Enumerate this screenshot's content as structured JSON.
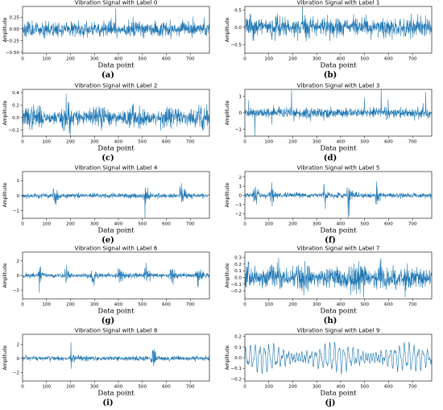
{
  "figure": {
    "signal_color": "#1f77b4"
  },
  "chart_data": [
    {
      "id": "a",
      "type": "line",
      "title": "Vibration Signal with Label 0",
      "xlabel": "Data point",
      "ylabel": "Amplitude",
      "sublabel": "(a)",
      "xlim": [
        0,
        780
      ],
      "ylim": [
        -0.52,
        0.48
      ],
      "xticks": [
        0,
        100,
        200,
        300,
        400,
        500,
        600,
        700
      ],
      "yticks": [
        0.25,
        0.0,
        -0.25,
        -0.5
      ],
      "ytick_labels": [
        "0.25",
        "0.00",
        "−0.25",
        "−0.50"
      ],
      "amplitude": 0.3,
      "pattern": "dense",
      "seed": 11
    },
    {
      "id": "b",
      "type": "line",
      "title": "Vibration Signal with Label 1",
      "xlabel": "Data point",
      "ylabel": "Amplitude",
      "sublabel": "(b)",
      "xlim": [
        0,
        780
      ],
      "ylim": [
        -0.75,
        0.6
      ],
      "xticks": [
        0,
        100,
        200,
        300,
        400,
        500,
        600,
        700
      ],
      "yticks": [
        0.5,
        0.0,
        -0.5
      ],
      "ytick_labels": [
        "0.5",
        "0.0",
        "−0.5"
      ],
      "amplitude": 0.5,
      "pattern": "dense",
      "seed": 23
    },
    {
      "id": "c",
      "type": "line",
      "title": "Vibration Signal with Label 2",
      "xlabel": "Data point",
      "ylabel": "Amplitude",
      "sublabel": "(c)",
      "xlim": [
        0,
        780
      ],
      "ylim": [
        -0.3,
        0.45
      ],
      "xticks": [
        0,
        100,
        200,
        300,
        400,
        500,
        600,
        700
      ],
      "yticks": [
        0.4,
        0.2,
        0.0,
        -0.2
      ],
      "ytick_labels": [
        "0.4",
        "0.2",
        "0.0",
        "−0.2"
      ],
      "amplitude": 0.35,
      "pattern": "bursty",
      "seed": 37
    },
    {
      "id": "d",
      "type": "line",
      "title": "Vibration Signal with Label 3",
      "xlabel": "Data point",
      "ylabel": "Amplitude",
      "sublabel": "(d)",
      "xlim": [
        0,
        780
      ],
      "ylim": [
        -1.4,
        1.4
      ],
      "xticks": [
        0,
        100,
        200,
        300,
        400,
        500,
        600,
        700
      ],
      "yticks": [
        1,
        0,
        -1
      ],
      "ytick_labels": [
        "1",
        "0",
        "−1"
      ],
      "amplitude": 1.2,
      "pattern": "spiky",
      "seed": 41
    },
    {
      "id": "e",
      "type": "line",
      "title": "Vibration Signal with Label 4",
      "xlabel": "Data point",
      "ylabel": "Amplitude",
      "sublabel": "(e)",
      "xlim": [
        0,
        780
      ],
      "ylim": [
        -1.5,
        1.6
      ],
      "xticks": [
        0,
        100,
        200,
        300,
        400,
        500,
        600,
        700
      ],
      "yticks": [
        1,
        0,
        -1
      ],
      "ytick_labels": [
        "1",
        "0",
        "−1"
      ],
      "amplitude": 1.4,
      "pattern": "impulse",
      "bursts": [
        130,
        510,
        660
      ],
      "seed": 53
    },
    {
      "id": "f",
      "type": "line",
      "title": "Vibration Signal with Label 5",
      "xlabel": "Data point",
      "ylabel": "Amplitude",
      "sublabel": "(f)",
      "xlim": [
        0,
        780
      ],
      "ylim": [
        -2.5,
        2.6
      ],
      "xticks": [
        0,
        100,
        200,
        300,
        400,
        500,
        600,
        700
      ],
      "yticks": [
        2,
        1,
        0,
        -1,
        -2
      ],
      "ytick_labels": [
        "2",
        "1",
        "0",
        "−1",
        "−2"
      ],
      "amplitude": 2.2,
      "pattern": "impulse",
      "bursts": [
        40,
        110,
        330,
        430,
        550
      ],
      "seed": 67
    },
    {
      "id": "g",
      "type": "line",
      "title": "Vibration Signal with Label 6",
      "xlabel": "Data point",
      "ylabel": "Amplitude",
      "sublabel": "(g)",
      "xlim": [
        0,
        780
      ],
      "ylim": [
        -3.2,
        3.2
      ],
      "xticks": [
        0,
        100,
        200,
        300,
        400,
        500,
        600,
        700
      ],
      "yticks": [
        2,
        0,
        -2
      ],
      "ytick_labels": [
        "2",
        "0",
        "−2"
      ],
      "amplitude": 2.6,
      "pattern": "impulse",
      "bursts": [
        70,
        180,
        290,
        400,
        510,
        620,
        730
      ],
      "seed": 71
    },
    {
      "id": "h",
      "type": "line",
      "title": "Vibration Signal with Label 7",
      "xlabel": "Data point",
      "ylabel": "Amplitude",
      "sublabel": "(h)",
      "xlim": [
        0,
        780
      ],
      "ylim": [
        -0.32,
        0.38
      ],
      "xticks": [
        0,
        100,
        200,
        300,
        400,
        500,
        600,
        700
      ],
      "yticks": [
        0.3,
        0.2,
        0.1,
        0.0,
        -0.1,
        -0.2
      ],
      "ytick_labels": [
        "0.3",
        "0.2",
        "0.1",
        "0.0",
        "−0.1",
        "−0.2"
      ],
      "amplitude": 0.3,
      "pattern": "dense",
      "seed": 83
    },
    {
      "id": "i",
      "type": "line",
      "title": "Vibration Signal with Label 8",
      "xlabel": "Data point",
      "ylabel": "Amplitude",
      "sublabel": "(i)",
      "xlim": [
        0,
        780
      ],
      "ylim": [
        -3.2,
        3.4
      ],
      "xticks": [
        0,
        100,
        200,
        300,
        400,
        500,
        600,
        700
      ],
      "yticks": [
        2,
        0,
        -2
      ],
      "ytick_labels": [
        "2",
        "0",
        "−2"
      ],
      "amplitude": 2.8,
      "pattern": "impulse",
      "bursts": [
        200,
        540
      ],
      "seed": 97
    },
    {
      "id": "j",
      "type": "line",
      "title": "Vibration Signal with Label 9",
      "xlabel": "Data point",
      "ylabel": "Amplitude",
      "sublabel": "(j)",
      "xlim": [
        0,
        780
      ],
      "ylim": [
        -0.22,
        0.22
      ],
      "xticks": [
        0,
        100,
        200,
        300,
        400,
        500,
        600,
        700
      ],
      "yticks": [
        0.2,
        0.1,
        0.0,
        -0.1,
        -0.2
      ],
      "ytick_labels": [
        "0.2",
        "0.1",
        "0.0",
        "−0.1",
        "−0.2"
      ],
      "amplitude": 0.2,
      "pattern": "oscillation",
      "seed": 101
    }
  ]
}
